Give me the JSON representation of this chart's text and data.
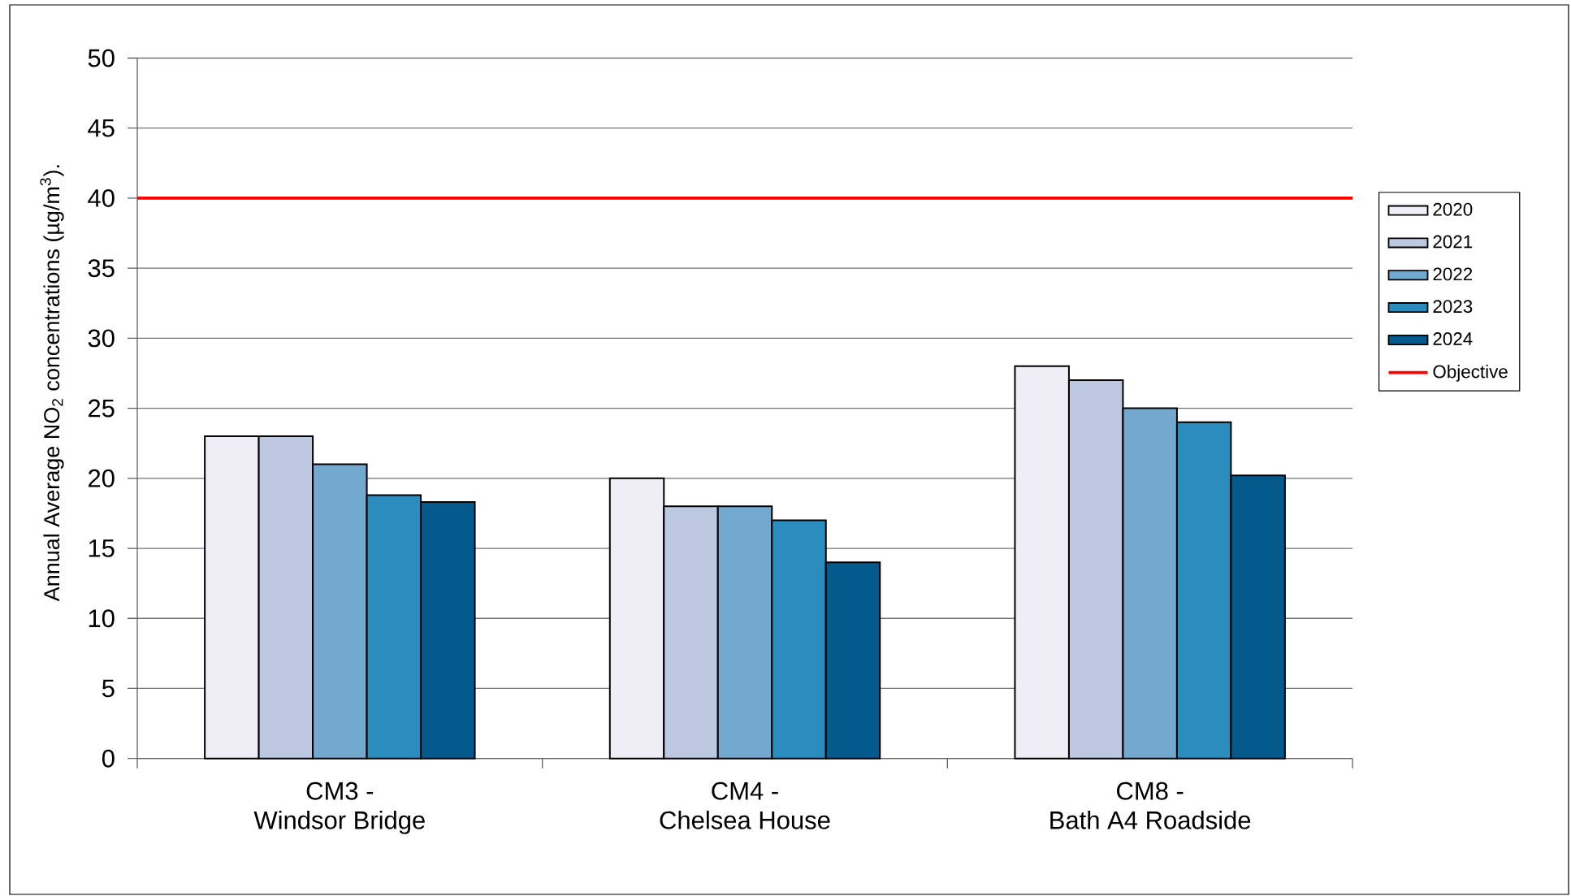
{
  "chart_data": {
    "type": "bar",
    "ylabel": "Annual Average NO$_{2}$ concentrations (µg/m$^{3}$).",
    "categories": [
      "CM3 -\nWindsor Bridge",
      "CM4 -\nChelsea House",
      "CM8 -\nBath A4 Roadside"
    ],
    "series": [
      {
        "name": "2020",
        "color": "#efedf5",
        "values": [
          23,
          20,
          28
        ]
      },
      {
        "name": "2021",
        "color": "#bdc9e1",
        "values": [
          23,
          18,
          27
        ]
      },
      {
        "name": "2022",
        "color": "#74a9cf",
        "values": [
          21,
          18,
          25
        ]
      },
      {
        "name": "2023",
        "color": "#2b8cbe",
        "values": [
          18.8,
          17,
          24
        ]
      },
      {
        "name": "2024",
        "color": "#045a8d",
        "values": [
          18.3,
          14.0,
          20.2
        ]
      }
    ],
    "ylim": [
      0,
      50
    ],
    "yticks": [
      0,
      5,
      10,
      15,
      20,
      25,
      30,
      35,
      40,
      45,
      50
    ],
    "grid": "y",
    "legend": "right",
    "ref_lines": [
      {
        "axis": "y",
        "value": 40,
        "label": "Objective",
        "color": "#ff0000"
      }
    ]
  }
}
